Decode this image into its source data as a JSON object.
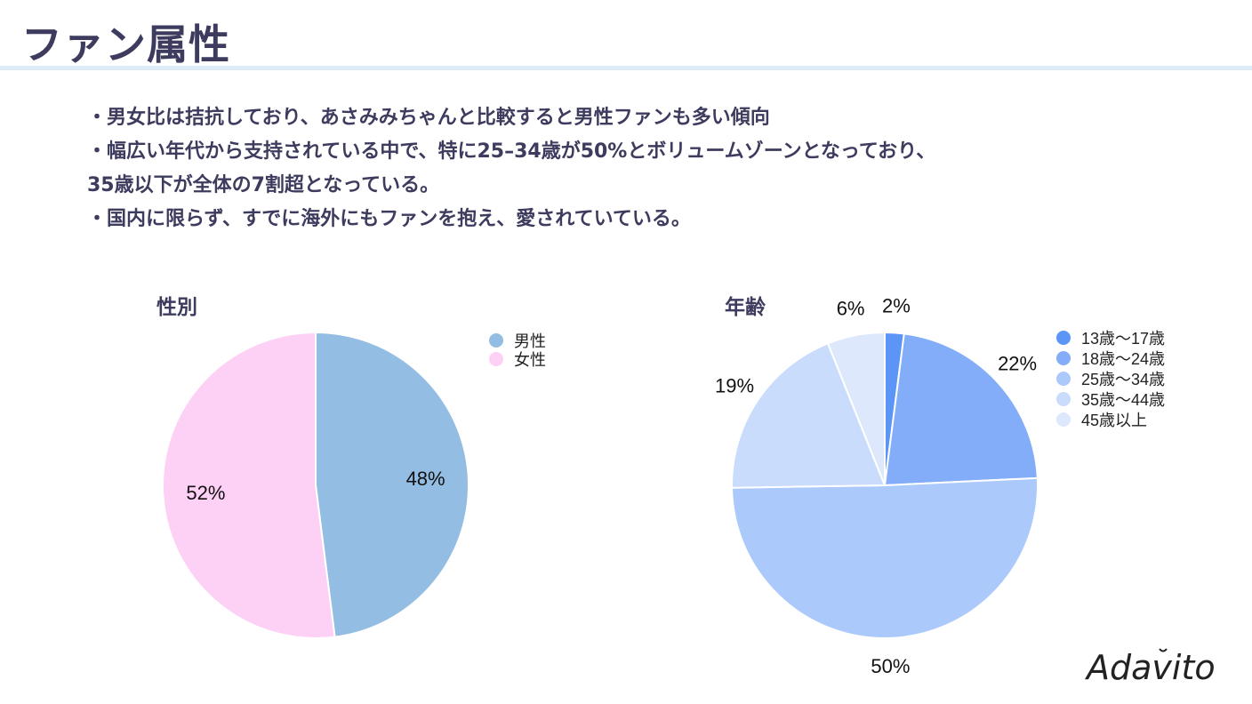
{
  "page": {
    "title": "ファン属性",
    "bullets": [
      "・男女比は拮抗しており、あさみみちゃんと比較すると男性ファンも多い傾向",
      "・幅広い年代から支持されている中で、特に25–34歳が50%とボリュームゾーンとなっており、",
      "35歳以下が全体の7割超となっている。",
      "・国内に限らず、すでに海外にもファンを抱え、愛されていている。"
    ],
    "logo_text": "Adavito"
  },
  "chart_data": [
    {
      "type": "pie",
      "title": "性別",
      "categories": [
        "男性",
        "女性"
      ],
      "values": [
        48,
        52
      ],
      "labels": [
        "48%",
        "52%"
      ],
      "colors": [
        "#94bde3",
        "#fdd0f6"
      ],
      "legend_position": "top-right"
    },
    {
      "type": "pie",
      "title": "年齢",
      "categories": [
        "13歳〜17歳",
        "18歳〜24歳",
        "25歳〜34歳",
        "35歳〜44歳",
        "45歳以上"
      ],
      "values": [
        2,
        22,
        50,
        19,
        6
      ],
      "labels": [
        "2%",
        "22%",
        "50%",
        "19%",
        "6%"
      ],
      "colors": [
        "#5b95f5",
        "#83adf8",
        "#abc9fb",
        "#c9dcfc",
        "#dde8fd"
      ],
      "legend_position": "top-right"
    }
  ]
}
